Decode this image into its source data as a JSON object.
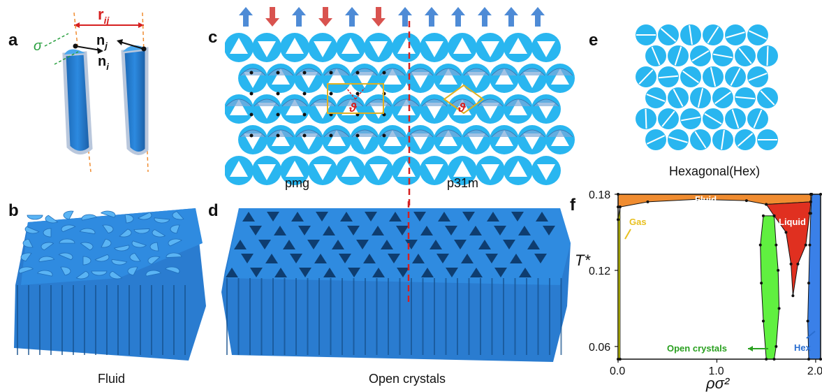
{
  "panels": {
    "a": "a",
    "b": "b",
    "c": "c",
    "d": "d",
    "e": "e",
    "f": "f"
  },
  "panel_a": {
    "rij": "r",
    "rij_sub": "ij",
    "sigma": "σ",
    "nj": "n",
    "nj_sub": "j",
    "ni": "n",
    "ni_sub": "i"
  },
  "panel_c": {
    "left_group": "pmg",
    "right_group": "p31m",
    "angle_symbol": "ϑ",
    "arrows": [
      "up",
      "down",
      "up",
      "down",
      "up",
      "down",
      "up",
      "up",
      "up",
      "up",
      "up",
      "up"
    ]
  },
  "captions": {
    "fluid": "Fluid",
    "open_crystals": "Open crystals",
    "hexagonal": "Hexagonal(Hex)"
  },
  "colors": {
    "cylinder": "#1f78c8",
    "cylinder_top": "#4aa8ee",
    "disk": "#29b6f0",
    "up_arrow": "#4e8bd6",
    "down_arrow": "#d9534f",
    "gas": "#f0f000",
    "fluid": "#f08c30",
    "liquid": "#e03020",
    "open_crystal": "#60f040",
    "hex": "#3a80e8",
    "dashed": "#d62020",
    "frame": "#e0b020"
  },
  "chart_data": {
    "type": "area",
    "xlabel": "ρσ²",
    "ylabel": "T*",
    "xlim": [
      0.0,
      2.05
    ],
    "ylim": [
      0.05,
      0.18
    ],
    "x_ticks": [
      "0.0",
      "1.0",
      "2.0"
    ],
    "y_ticks": [
      "0.06",
      "0.12",
      "0.18"
    ],
    "annotations": {
      "fluid": "Fluid",
      "gas": "Gas",
      "liquid": "Liquid",
      "open_crystals": "Open crystals",
      "hex": "Hex"
    },
    "regions": [
      {
        "name": "Gas",
        "boundary": [
          [
            0.0,
            0.05
          ],
          [
            0.0,
            0.16
          ],
          [
            0.02,
            0.17
          ],
          [
            0.02,
            0.05
          ]
        ]
      },
      {
        "name": "Fluid",
        "boundary": [
          [
            0.0,
            0.18
          ],
          [
            1.95,
            0.18
          ],
          [
            1.95,
            0.174
          ],
          [
            1.5,
            0.172
          ],
          [
            1.3,
            0.175
          ],
          [
            0.8,
            0.176
          ],
          [
            0.3,
            0.174
          ],
          [
            0.02,
            0.17
          ],
          [
            0.0,
            0.17
          ]
        ]
      },
      {
        "name": "Liquid",
        "boundary": [
          [
            1.5,
            0.172
          ],
          [
            1.58,
            0.163
          ],
          [
            1.7,
            0.15
          ],
          [
            1.75,
            0.125
          ],
          [
            1.77,
            0.1
          ],
          [
            1.82,
            0.125
          ],
          [
            1.9,
            0.14
          ],
          [
            1.94,
            0.165
          ],
          [
            1.95,
            0.174
          ]
        ]
      },
      {
        "name": "Open crystals",
        "boundary": [
          [
            1.47,
            0.163
          ],
          [
            1.58,
            0.163
          ],
          [
            1.6,
            0.14
          ],
          [
            1.62,
            0.12
          ],
          [
            1.63,
            0.09
          ],
          [
            1.6,
            0.06
          ],
          [
            1.58,
            0.05
          ],
          [
            1.5,
            0.05
          ],
          [
            1.47,
            0.08
          ],
          [
            1.45,
            0.11
          ],
          [
            1.44,
            0.14
          ]
        ]
      },
      {
        "name": "Hex",
        "boundary": [
          [
            1.96,
            0.18
          ],
          [
            2.05,
            0.18
          ],
          [
            2.05,
            0.05
          ],
          [
            1.93,
            0.05
          ],
          [
            1.92,
            0.08
          ],
          [
            1.93,
            0.11
          ],
          [
            1.94,
            0.14
          ],
          [
            1.95,
            0.165
          ]
        ]
      }
    ]
  }
}
